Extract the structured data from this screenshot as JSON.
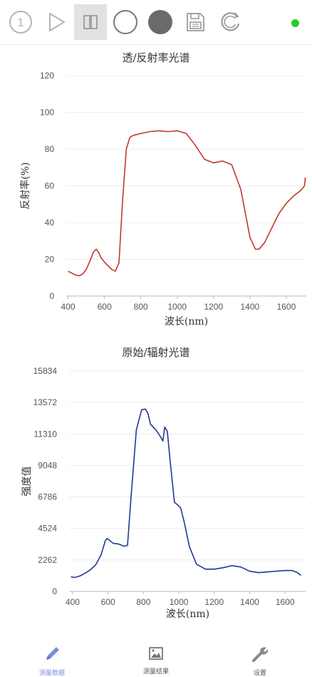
{
  "toolbar": {
    "buttons": [
      {
        "id": "step",
        "icon": "circled-one-icon",
        "label": "1"
      },
      {
        "id": "play",
        "icon": "play-icon"
      },
      {
        "id": "pause",
        "icon": "pause-icon",
        "active": true
      },
      {
        "id": "white-ref",
        "icon": "empty-circle-icon"
      },
      {
        "id": "dark-ref",
        "icon": "filled-circle-icon"
      },
      {
        "id": "save",
        "icon": "floppy-disk-icon"
      },
      {
        "id": "refresh",
        "icon": "refresh-c-icon"
      }
    ],
    "status_color": "#1ed21e"
  },
  "chart_data": [
    {
      "type": "line",
      "title": "透/反射率光谱",
      "xlabel": "波长(nm)",
      "ylabel": "反射率(%)",
      "xlim": [
        390,
        1710
      ],
      "ylim": [
        0,
        120
      ],
      "xticks": [
        400,
        600,
        800,
        1000,
        1200,
        1400,
        1600
      ],
      "yticks": [
        0,
        20,
        40,
        60,
        80,
        100,
        120
      ],
      "grid": true,
      "color": "#c0392b",
      "x": [
        400,
        420,
        440,
        460,
        480,
        500,
        520,
        540,
        555,
        570,
        580,
        600,
        620,
        640,
        660,
        680,
        700,
        720,
        740,
        760,
        800,
        850,
        900,
        950,
        1000,
        1050,
        1100,
        1150,
        1200,
        1250,
        1300,
        1350,
        1400,
        1430,
        1450,
        1480,
        1520,
        1560,
        1600,
        1640,
        1680,
        1700,
        1705
      ],
      "y": [
        13.5,
        12.5,
        11.5,
        11,
        12,
        14.5,
        19,
        24,
        25.5,
        23.5,
        21,
        18.5,
        16.5,
        14.5,
        13.5,
        18,
        52,
        80,
        86.5,
        87.5,
        88.5,
        89.5,
        90,
        89.5,
        90,
        88.5,
        82,
        74.5,
        72.5,
        73.5,
        71.5,
        58,
        32,
        25.5,
        25.5,
        29,
        37,
        45,
        50.5,
        54.5,
        57.5,
        60,
        64.5
      ]
    },
    {
      "type": "line",
      "title": "原始/辐射光谱",
      "xlabel": "波长(nm)",
      "ylabel": "强度值",
      "xlim": [
        380,
        1720
      ],
      "ylim": [
        0,
        15834
      ],
      "xticks": [
        400,
        600,
        800,
        1000,
        1200,
        1400,
        1600
      ],
      "yticks": [
        0,
        2262,
        4524,
        6786,
        9048,
        11310,
        13572,
        15834
      ],
      "grid": true,
      "color": "#1f3a8f",
      "x": [
        390,
        410,
        440,
        470,
        500,
        530,
        560,
        585,
        595,
        610,
        630,
        660,
        690,
        710,
        730,
        760,
        790,
        810,
        825,
        840,
        870,
        900,
        910,
        920,
        935,
        950,
        975,
        990,
        1010,
        1030,
        1060,
        1100,
        1150,
        1200,
        1250,
        1300,
        1350,
        1400,
        1450,
        1500,
        1550,
        1600,
        1640,
        1670,
        1690
      ],
      "y": [
        1050,
        1000,
        1100,
        1300,
        1550,
        1900,
        2600,
        3650,
        3800,
        3650,
        3450,
        3400,
        3250,
        3300,
        6800,
        11600,
        13050,
        13100,
        12800,
        12000,
        11600,
        11050,
        10800,
        11800,
        11500,
        9500,
        6400,
        6250,
        6000,
        5000,
        3200,
        1950,
        1600,
        1600,
        1700,
        1850,
        1750,
        1450,
        1350,
        1400,
        1450,
        1500,
        1500,
        1350,
        1150
      ]
    }
  ],
  "nav": [
    {
      "icon": "pencil-icon",
      "label": "测量数据",
      "active": true
    },
    {
      "icon": "image-icon",
      "label": "测量结果",
      "active": false
    },
    {
      "icon": "wrench-icon",
      "label": "设置",
      "active": false
    }
  ]
}
